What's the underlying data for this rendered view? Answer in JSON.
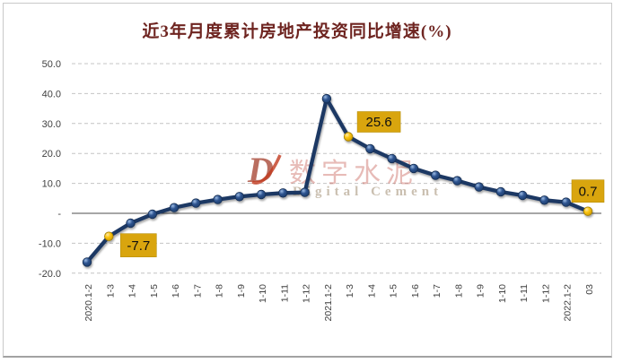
{
  "title": "近3年月度累计房地产投资同比增速(%)",
  "watermark": {
    "logo": "D",
    "cn": "数字水泥",
    "en": "Digital Cement"
  },
  "colors": {
    "title": "#6E2420",
    "line": "#1F3864",
    "marker_blue": "#2F5591",
    "marker_blue_light": "#9DBCE4",
    "marker_stroke": "#152E52",
    "highlight_yellow": "#FBC40D",
    "highlight_yellow_light": "#FFE9A8",
    "highlight_stroke": "#9C7A00",
    "label_box": "#D9A50E",
    "label_box_border": "#B8900A",
    "label_text": "#101010",
    "grid": "#C4C4C4",
    "zero_line": "#4D4D4D",
    "axis_text": "#404040"
  },
  "chart_data": {
    "type": "line",
    "title": "近3年月度累计房地产投资同比增速(%)",
    "xlabel": "",
    "ylabel": "",
    "ylim": [
      -20,
      50
    ],
    "grid": "horizontal-dashed",
    "legend": "none",
    "categories": [
      "2020.1-2",
      "1-3",
      "1-4",
      "1-5",
      "1-6",
      "1-7",
      "1-8",
      "1-9",
      "1-10",
      "1-11",
      "1-12",
      "2021.1-2",
      "1-3",
      "1-4",
      "1-5",
      "1-6",
      "1-7",
      "1-8",
      "1-9",
      "1-10",
      "1-11",
      "1-12",
      "2022.1-2",
      "03"
    ],
    "values": [
      -16.3,
      -7.7,
      -3.3,
      -0.3,
      1.9,
      3.4,
      4.6,
      5.6,
      6.3,
      6.8,
      7.0,
      38.3,
      25.6,
      21.6,
      18.3,
      15.0,
      12.7,
      10.9,
      8.8,
      7.2,
      6.0,
      4.4,
      3.7,
      0.7
    ],
    "highlighted_indices": [
      1,
      12,
      23
    ],
    "point_labels": [
      {
        "index": 1,
        "text": "-7.7"
      },
      {
        "index": 12,
        "text": "25.6"
      },
      {
        "index": 23,
        "text": "0.7"
      }
    ],
    "y_ticks": [
      {
        "v": 50,
        "label": "50.0"
      },
      {
        "v": 40,
        "label": "40.0"
      },
      {
        "v": 30,
        "label": "30.0"
      },
      {
        "v": 20,
        "label": "20.0"
      },
      {
        "v": 10,
        "label": "10.0"
      },
      {
        "v": 0,
        "label": "-"
      },
      {
        "v": -10,
        "label": "-10.0"
      },
      {
        "v": -20,
        "label": "-20.0"
      }
    ]
  }
}
